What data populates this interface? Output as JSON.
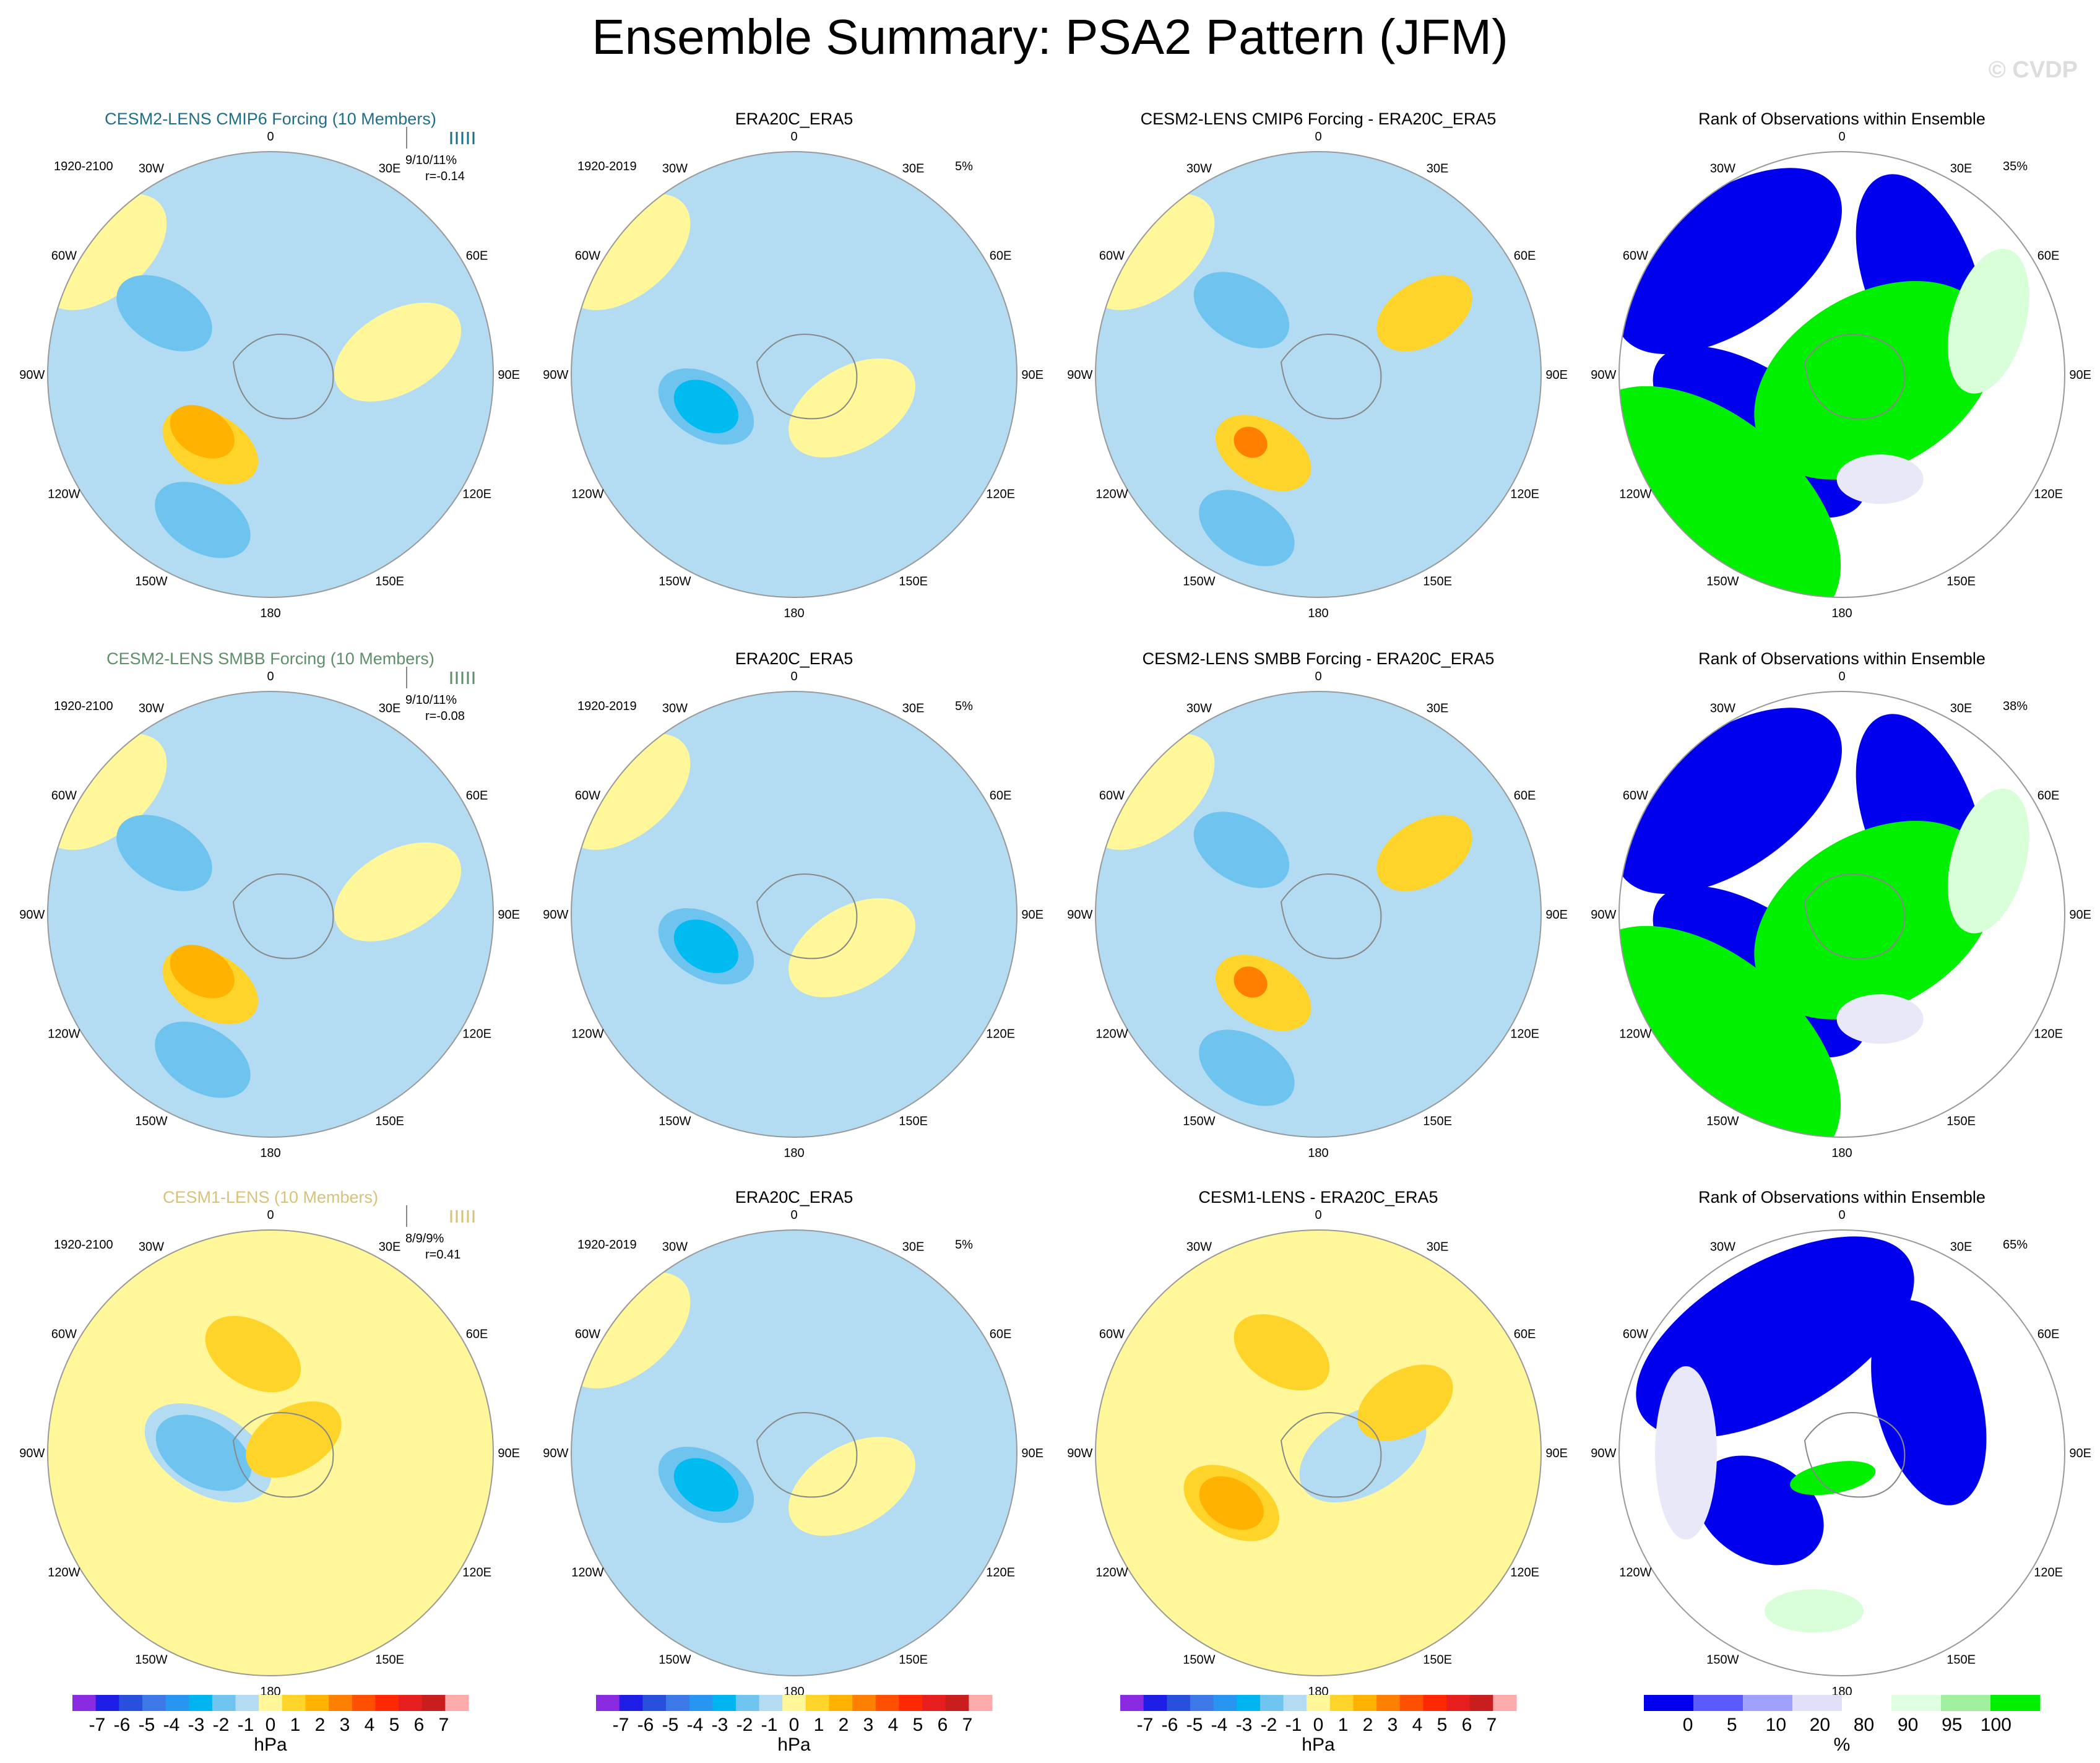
{
  "title": "Ensemble Summary: PSA2 Pattern (JFM)",
  "watermark": "© CVDP",
  "colors": {
    "cmip6_title": "#1f6f8b",
    "smbb_title": "#5f8f6a",
    "cesm1_title": "#d8c27a",
    "land": "#888888",
    "neg1": "#b3dcf2",
    "neg2": "#6fc3ef",
    "neg3": "#00bbf0",
    "pos1": "#fff799",
    "pos2": "#ffd42a",
    "pos3": "#ffb300",
    "pos4": "#ff8000",
    "rank_low": "#0000ee",
    "rank_high": "#00f000",
    "rank_midlow": "#e8e8f8",
    "rank_midhigh": "#d8ffd8"
  },
  "chart_data": {
    "type": "heatmap",
    "projection": "south polar stereographic",
    "lon_labels": [
      "0",
      "30E",
      "60E",
      "90E",
      "120E",
      "150E",
      "180",
      "150W",
      "120W",
      "90W",
      "60W",
      "30W"
    ],
    "rows": [
      {
        "panels": [
          {
            "kind": "model",
            "title": "CESM2-LENS CMIP6 Forcing (10 Members)",
            "title_color": "cmip6_title",
            "period": "1920-2100",
            "stats_top": "9/10/11%",
            "stats_r": "r=-0.14",
            "blobs": [
              {
                "lon": 155,
                "colat": 0.36,
                "level": -1
              },
              {
                "lon": 220,
                "colat": 0.42,
                "level": 2
              },
              {
                "lon": 230,
                "colat": 0.4,
                "level": 3
              },
              {
                "lon": 80,
                "colat": 0.58,
                "level": 1
              },
              {
                "lon": 205,
                "colat": 0.72,
                "level": -2
              },
              {
                "lon": 300,
                "colat": 0.55,
                "level": -2
              }
            ]
          },
          {
            "kind": "obs",
            "title": "ERA20C_ERA5",
            "period": "1920-2019",
            "pct": "5%",
            "blobs": [
              {
                "lon": 120,
                "colat": 0.3,
                "level": 1
              },
              {
                "lon": 250,
                "colat": 0.42,
                "level": -2
              },
              {
                "lon": 250,
                "colat": 0.42,
                "level": -3
              }
            ]
          },
          {
            "kind": "diff",
            "title": "CESM2-LENS CMIP6 Forcing - ERA20C_ERA5",
            "blobs": [
              {
                "lon": 215,
                "colat": 0.43,
                "level": 2
              },
              {
                "lon": 225,
                "colat": 0.43,
                "level": 4
              },
              {
                "lon": 60,
                "colat": 0.55,
                "level": 2
              },
              {
                "lon": 310,
                "colat": 0.45,
                "level": -2
              },
              {
                "lon": 205,
                "colat": 0.76,
                "level": -2
              }
            ]
          },
          {
            "kind": "rank",
            "title": "Rank of Observations within Ensemble",
            "pct": "35%"
          }
        ]
      },
      {
        "panels": [
          {
            "kind": "model",
            "title": "CESM2-LENS SMBB Forcing (10 Members)",
            "title_color": "smbb_title",
            "period": "1920-2100",
            "stats_top": "9/10/11%",
            "stats_r": "r=-0.08",
            "blobs": [
              {
                "lon": 220,
                "colat": 0.42,
                "level": 2
              },
              {
                "lon": 230,
                "colat": 0.4,
                "level": 3
              },
              {
                "lon": 80,
                "colat": 0.58,
                "level": 1
              },
              {
                "lon": 205,
                "colat": 0.72,
                "level": -2
              },
              {
                "lon": 300,
                "colat": 0.55,
                "level": -2
              }
            ]
          },
          {
            "kind": "obs",
            "title": "ERA20C_ERA5",
            "period": "1920-2019",
            "pct": "5%",
            "blobs": [
              {
                "lon": 120,
                "colat": 0.3,
                "level": 1
              },
              {
                "lon": 250,
                "colat": 0.42,
                "level": -2
              },
              {
                "lon": 250,
                "colat": 0.42,
                "level": -3
              }
            ]
          },
          {
            "kind": "diff",
            "title": "CESM2-LENS SMBB Forcing - ERA20C_ERA5",
            "blobs": [
              {
                "lon": 215,
                "colat": 0.43,
                "level": 2
              },
              {
                "lon": 225,
                "colat": 0.43,
                "level": 4
              },
              {
                "lon": 60,
                "colat": 0.55,
                "level": 2
              },
              {
                "lon": 310,
                "colat": 0.45,
                "level": -2
              },
              {
                "lon": 205,
                "colat": 0.76,
                "level": -2
              }
            ]
          },
          {
            "kind": "rank",
            "title": "Rank of Observations within Ensemble",
            "pct": "38%"
          }
        ]
      },
      {
        "panels": [
          {
            "kind": "model",
            "title": "CESM1-LENS (10 Members)",
            "title_color": "cesm1_title",
            "period": "1920-2100",
            "stats_top": "8/9/9%",
            "stats_r": "r=0.41",
            "base_level": 1,
            "blobs": [
              {
                "lon": 270,
                "colat": 0.28,
                "level": -1
              },
              {
                "lon": 270,
                "colat": 0.3,
                "level": -2
              },
              {
                "lon": 60,
                "colat": 0.12,
                "level": 2
              },
              {
                "lon": 350,
                "colat": 0.45,
                "level": 2
              }
            ]
          },
          {
            "kind": "obs",
            "title": "ERA20C_ERA5",
            "period": "1920-2019",
            "pct": "5%",
            "blobs": [
              {
                "lon": 120,
                "colat": 0.3,
                "level": 1
              },
              {
                "lon": 250,
                "colat": 0.42,
                "level": -2
              },
              {
                "lon": 250,
                "colat": 0.42,
                "level": -3
              }
            ]
          },
          {
            "kind": "diff",
            "title": "CESM1-LENS - ERA20C_ERA5",
            "base_level": 1,
            "blobs": [
              {
                "lon": 90,
                "colat": 0.2,
                "level": -1
              },
              {
                "lon": 240,
                "colat": 0.45,
                "level": 2
              },
              {
                "lon": 240,
                "colat": 0.45,
                "level": 3
              },
              {
                "lon": 340,
                "colat": 0.48,
                "level": 2
              },
              {
                "lon": 60,
                "colat": 0.45,
                "level": 2
              }
            ]
          },
          {
            "kind": "rank",
            "title": "Rank of Observations within Ensemble",
            "pct": "65%"
          }
        ]
      }
    ],
    "colorbars": [
      {
        "unit": "hPa",
        "ticks": [
          "-7",
          "-6",
          "-5",
          "-4",
          "-3",
          "-2",
          "-1",
          "0",
          "1",
          "2",
          "3",
          "4",
          "5",
          "6",
          "7"
        ],
        "colors": [
          "#8a2be2",
          "#1e1ee6",
          "#2850dc",
          "#3c78e6",
          "#2896f0",
          "#00b4f0",
          "#6fc3ef",
          "#b3dcf2",
          "#fff799",
          "#ffd42a",
          "#ffb300",
          "#ff8000",
          "#ff5000",
          "#ff2800",
          "#e61e1e",
          "#c81e1e",
          "#ffaaaa"
        ]
      },
      {
        "unit": "hPa",
        "ticks": [
          "-7",
          "-6",
          "-5",
          "-4",
          "-3",
          "-2",
          "-1",
          "0",
          "1",
          "2",
          "3",
          "4",
          "5",
          "6",
          "7"
        ],
        "colors": [
          "#8a2be2",
          "#1e1ee6",
          "#2850dc",
          "#3c78e6",
          "#2896f0",
          "#00b4f0",
          "#6fc3ef",
          "#b3dcf2",
          "#fff799",
          "#ffd42a",
          "#ffb300",
          "#ff8000",
          "#ff5000",
          "#ff2800",
          "#e61e1e",
          "#c81e1e",
          "#ffaaaa"
        ]
      },
      {
        "unit": "hPa",
        "ticks": [
          "-7",
          "-6",
          "-5",
          "-4",
          "-3",
          "-2",
          "-1",
          "0",
          "1",
          "2",
          "3",
          "4",
          "5",
          "6",
          "7"
        ],
        "colors": [
          "#8a2be2",
          "#1e1ee6",
          "#2850dc",
          "#3c78e6",
          "#2896f0",
          "#00b4f0",
          "#6fc3ef",
          "#b3dcf2",
          "#fff799",
          "#ffd42a",
          "#ffb300",
          "#ff8000",
          "#ff5000",
          "#ff2800",
          "#e61e1e",
          "#c81e1e",
          "#ffaaaa"
        ]
      },
      {
        "unit": "%",
        "ticks": [
          "0",
          "5",
          "10",
          "20",
          "80",
          "90",
          "95",
          "100"
        ],
        "colors": [
          "#0000ee",
          "#5a5aff",
          "#a0a0ff",
          "#e0e0f8",
          "#ffffff",
          "#e0ffe0",
          "#a0f0a0",
          "#00f000"
        ]
      }
    ]
  }
}
